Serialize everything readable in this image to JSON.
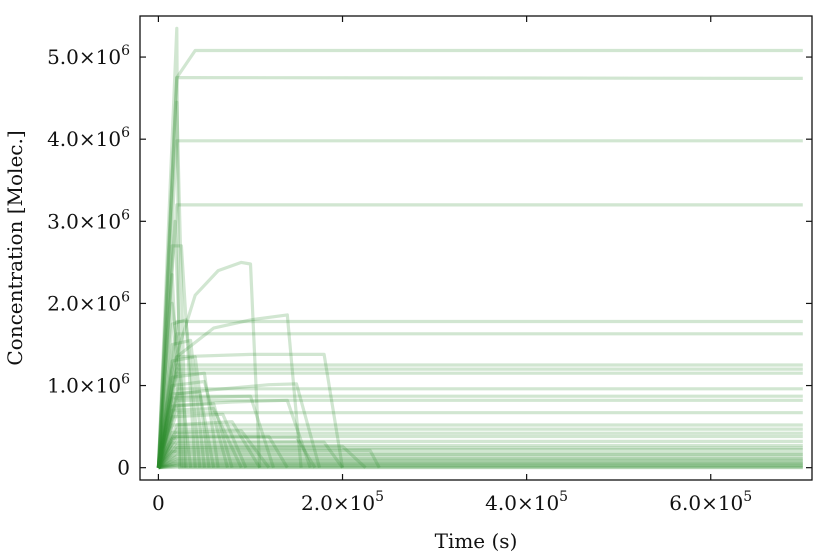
{
  "chart_data": {
    "type": "line",
    "title": "",
    "xlabel": "Time (s)",
    "ylabel": "Concentration [Molec.]",
    "xlim": [
      -20000,
      710000
    ],
    "ylim": [
      -150000,
      5500000
    ],
    "x_ticks": [
      0,
      200000,
      400000,
      600000
    ],
    "x_tick_labels": [
      {
        "mantissa": "0",
        "exp": ""
      },
      {
        "mantissa": "2.0×10",
        "exp": "5"
      },
      {
        "mantissa": "4.0×10",
        "exp": "5"
      },
      {
        "mantissa": "6.0×10",
        "exp": "5"
      }
    ],
    "y_ticks": [
      0,
      1000000,
      2000000,
      3000000,
      4000000,
      5000000
    ],
    "y_tick_labels": [
      {
        "mantissa": "0",
        "exp": ""
      },
      {
        "mantissa": "1.0×10",
        "exp": "6"
      },
      {
        "mantissa": "2.0×10",
        "exp": "6"
      },
      {
        "mantissa": "3.0×10",
        "exp": "6"
      },
      {
        "mantissa": "4.0×10",
        "exp": "6"
      },
      {
        "mantissa": "5.0×10",
        "exp": "6"
      }
    ],
    "grid": false,
    "legend": "none",
    "line_color": "#2e8b2e",
    "line_opacity": 0.22,
    "series": [
      {
        "x": [
          0,
          20000,
          40000,
          700000
        ],
        "y": [
          0,
          4750000,
          5080000,
          5080000
        ]
      },
      {
        "x": [
          0,
          20000,
          700000
        ],
        "y": [
          0,
          4750000,
          4740000
        ]
      },
      {
        "x": [
          0,
          20000,
          25000,
          700000
        ],
        "y": [
          0,
          3980000,
          3980000,
          3980000
        ]
      },
      {
        "x": [
          0,
          20000,
          700000
        ],
        "y": [
          0,
          3200000,
          3200000
        ]
      },
      {
        "x": [
          0,
          15000,
          40000,
          65000,
          90000,
          100000,
          110000
        ],
        "y": [
          0,
          1200000,
          2100000,
          2400000,
          2500000,
          2480000,
          0
        ]
      },
      {
        "x": [
          0,
          20000,
          60000,
          100000,
          140000,
          155000
        ],
        "y": [
          0,
          1350000,
          1700000,
          1800000,
          1860000,
          0
        ]
      },
      {
        "x": [
          0,
          20000,
          700000
        ],
        "y": [
          0,
          1780000,
          1780000
        ]
      },
      {
        "x": [
          0,
          20000,
          700000
        ],
        "y": [
          0,
          1630000,
          1630000
        ]
      },
      {
        "x": [
          0,
          20000,
          100000,
          180000,
          200000
        ],
        "y": [
          0,
          1350000,
          1380000,
          1380000,
          0
        ]
      },
      {
        "x": [
          0,
          20000,
          700000
        ],
        "y": [
          0,
          1250000,
          1250000
        ]
      },
      {
        "x": [
          0,
          20000,
          700000
        ],
        "y": [
          0,
          1200000,
          1200000
        ]
      },
      {
        "x": [
          0,
          20000,
          700000
        ],
        "y": [
          0,
          1150000,
          1150000
        ]
      },
      {
        "x": [
          0,
          20000,
          60000,
          120000,
          150000,
          175000
        ],
        "y": [
          0,
          900000,
          950000,
          1010000,
          1020000,
          0
        ]
      },
      {
        "x": [
          0,
          20000,
          700000
        ],
        "y": [
          0,
          960000,
          960000
        ]
      },
      {
        "x": [
          0,
          20000,
          700000
        ],
        "y": [
          0,
          870000,
          870000
        ]
      },
      {
        "x": [
          0,
          20000,
          700000
        ],
        "y": [
          0,
          820000,
          820000
        ]
      },
      {
        "x": [
          0,
          20000,
          80000,
          140000,
          165000
        ],
        "y": [
          0,
          760000,
          800000,
          820000,
          0
        ]
      },
      {
        "x": [
          0,
          20000,
          700000
        ],
        "y": [
          0,
          670000,
          670000
        ]
      },
      {
        "x": [
          0,
          20000,
          700000
        ],
        "y": [
          0,
          520000,
          520000
        ]
      },
      {
        "x": [
          0,
          20000,
          700000
        ],
        "y": [
          0,
          470000,
          470000
        ]
      },
      {
        "x": [
          0,
          20000,
          700000
        ],
        "y": [
          0,
          420000,
          420000
        ]
      },
      {
        "x": [
          0,
          20000,
          700000
        ],
        "y": [
          0,
          380000,
          380000
        ]
      },
      {
        "x": [
          0,
          20000,
          700000
        ],
        "y": [
          0,
          320000,
          320000
        ]
      },
      {
        "x": [
          0,
          20000,
          700000
        ],
        "y": [
          0,
          270000,
          270000
        ]
      },
      {
        "x": [
          0,
          20000,
          700000
        ],
        "y": [
          0,
          220000,
          220000
        ]
      },
      {
        "x": [
          0,
          20000,
          700000
        ],
        "y": [
          0,
          180000,
          180000
        ]
      },
      {
        "x": [
          0,
          20000,
          700000
        ],
        "y": [
          0,
          140000,
          140000
        ]
      },
      {
        "x": [
          0,
          20000,
          700000
        ],
        "y": [
          0,
          110000,
          110000
        ]
      },
      {
        "x": [
          0,
          20000,
          700000
        ],
        "y": [
          0,
          80000,
          80000
        ]
      },
      {
        "x": [
          0,
          20000,
          700000
        ],
        "y": [
          0,
          55000,
          55000
        ]
      },
      {
        "x": [
          0,
          20000,
          700000
        ],
        "y": [
          0,
          30000,
          30000
        ]
      },
      {
        "x": [
          0,
          20000,
          700000
        ],
        "y": [
          0,
          15000,
          15000
        ]
      },
      {
        "x": [
          0,
          20000,
          700000
        ],
        "y": [
          0,
          5000,
          5000
        ]
      },
      {
        "x": [
          0,
          20000,
          700000
        ],
        "y": [
          0,
          60000,
          60000
        ]
      },
      {
        "x": [
          0,
          20000,
          700000
        ],
        "y": [
          0,
          100000,
          100000
        ]
      },
      {
        "x": [
          0,
          20000,
          700000
        ],
        "y": [
          0,
          160000,
          160000
        ]
      },
      {
        "x": [
          0,
          20000,
          700000
        ],
        "y": [
          0,
          240000,
          240000
        ]
      },
      {
        "x": [
          0,
          20000,
          700000
        ],
        "y": [
          0,
          35000,
          35000
        ]
      },
      {
        "x": [
          0,
          20000,
          23000,
          700000
        ],
        "y": [
          0,
          5350000,
          0,
          0
        ]
      },
      {
        "x": [
          0,
          20000,
          30000
        ],
        "y": [
          0,
          4450000,
          0
        ]
      },
      {
        "x": [
          0,
          18000,
          28000
        ],
        "y": [
          0,
          3000000,
          0
        ]
      },
      {
        "x": [
          0,
          15000,
          25000
        ],
        "y": [
          0,
          2350000,
          0
        ]
      },
      {
        "x": [
          0,
          15000,
          35000
        ],
        "y": [
          0,
          2000000,
          0
        ]
      },
      {
        "x": [
          0,
          15000,
          30000,
          45000
        ],
        "y": [
          0,
          1750000,
          1800000,
          0
        ]
      },
      {
        "x": [
          0,
          15000,
          40000,
          55000
        ],
        "y": [
          0,
          1300000,
          1350000,
          0
        ]
      },
      {
        "x": [
          0,
          15000,
          50000,
          65000
        ],
        "y": [
          0,
          1100000,
          1150000,
          0
        ]
      },
      {
        "x": [
          0,
          15000,
          45000,
          60000
        ],
        "y": [
          0,
          900000,
          920000,
          0
        ]
      },
      {
        "x": [
          0,
          15000,
          60000,
          80000
        ],
        "y": [
          0,
          750000,
          780000,
          0
        ]
      },
      {
        "x": [
          0,
          15000,
          70000,
          95000
        ],
        "y": [
          0,
          620000,
          650000,
          0
        ]
      },
      {
        "x": [
          0,
          15000,
          80000,
          110000
        ],
        "y": [
          0,
          520000,
          560000,
          0
        ]
      },
      {
        "x": [
          0,
          15000,
          90000,
          120000
        ],
        "y": [
          0,
          430000,
          450000,
          0
        ]
      },
      {
        "x": [
          0,
          15000,
          120000,
          140000
        ],
        "y": [
          0,
          380000,
          380000,
          0
        ]
      },
      {
        "x": [
          0,
          15000,
          150000,
          170000
        ],
        "y": [
          0,
          360000,
          370000,
          0
        ]
      },
      {
        "x": [
          0,
          15000,
          180000,
          200000
        ],
        "y": [
          0,
          300000,
          310000,
          0
        ]
      },
      {
        "x": [
          0,
          15000,
          200000,
          225000
        ],
        "y": [
          0,
          250000,
          260000,
          0
        ]
      },
      {
        "x": [
          0,
          15000,
          230000,
          240000
        ],
        "y": [
          0,
          200000,
          210000,
          0
        ]
      },
      {
        "x": [
          0,
          15000,
          50000,
          75000
        ],
        "y": [
          0,
          1000000,
          1050000,
          0
        ]
      },
      {
        "x": [
          0,
          15000,
          35000,
          50000
        ],
        "y": [
          0,
          1500000,
          1550000,
          0
        ]
      },
      {
        "x": [
          0,
          15000,
          25000,
          40000
        ],
        "y": [
          0,
          2700000,
          2700000,
          0
        ]
      },
      {
        "x": [
          0,
          15000,
          100000,
          125000
        ],
        "y": [
          0,
          850000,
          870000,
          0
        ]
      },
      {
        "x": [
          0,
          15000,
          60000,
          90000
        ],
        "y": [
          0,
          700000,
          720000,
          0
        ]
      }
    ]
  }
}
